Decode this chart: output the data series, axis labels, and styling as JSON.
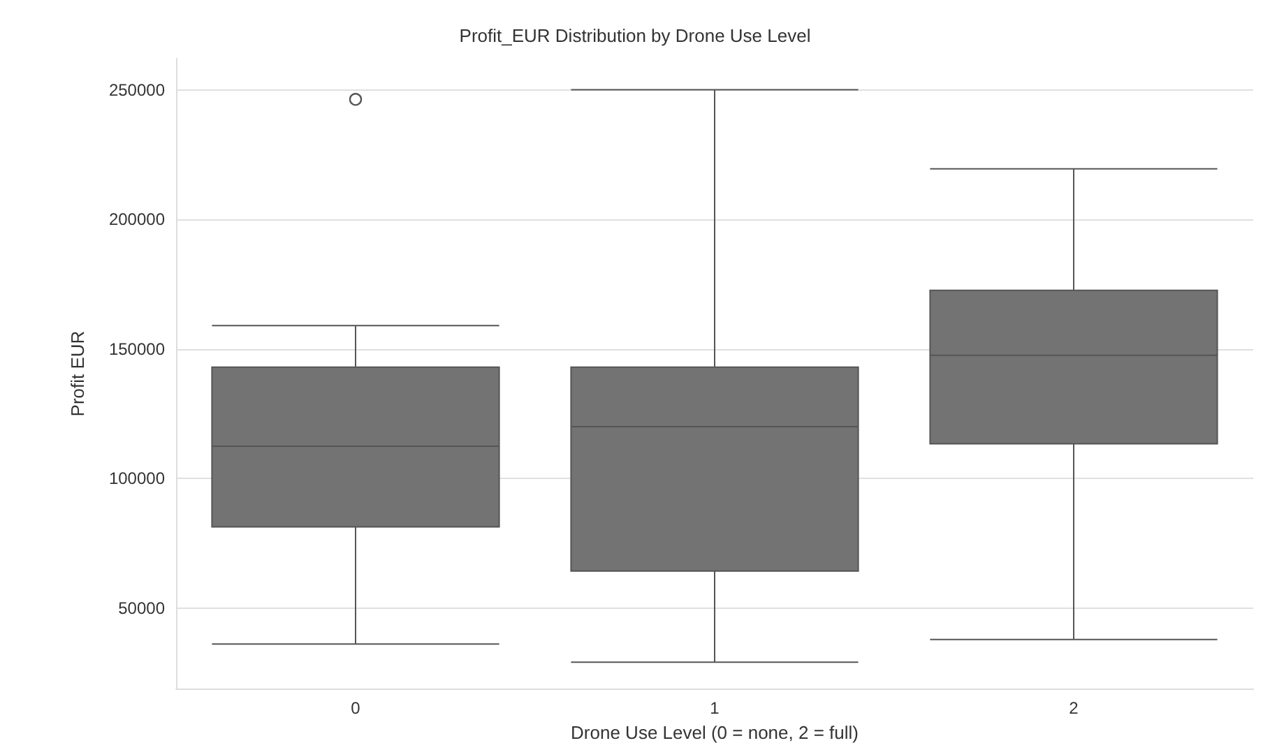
{
  "chart_data": {
    "type": "box",
    "title": "Profit_EUR Distribution by Drone Use Level",
    "xlabel": "Drone Use Level (0 = none, 2 = full)",
    "ylabel": "Profit EUR",
    "categories": [
      "0",
      "1",
      "2"
    ],
    "series": [
      {
        "color": "#737373",
        "boxes": [
          {
            "low": 36200,
            "q1": 81400,
            "median": 112500,
            "q3": 143000,
            "high": 159000,
            "outliers": [
              246300
            ]
          },
          {
            "low": 29200,
            "q1": 64300,
            "median": 120000,
            "q3": 143000,
            "high": 250000
          },
          {
            "low": 37900,
            "q1": 113400,
            "median": 147600,
            "q3": 172600,
            "high": 219500
          }
        ]
      }
    ],
    "ylim": [
      19000,
      262000
    ],
    "yticks": [
      50000,
      100000,
      150000,
      200000,
      250000
    ],
    "grid": "y"
  }
}
